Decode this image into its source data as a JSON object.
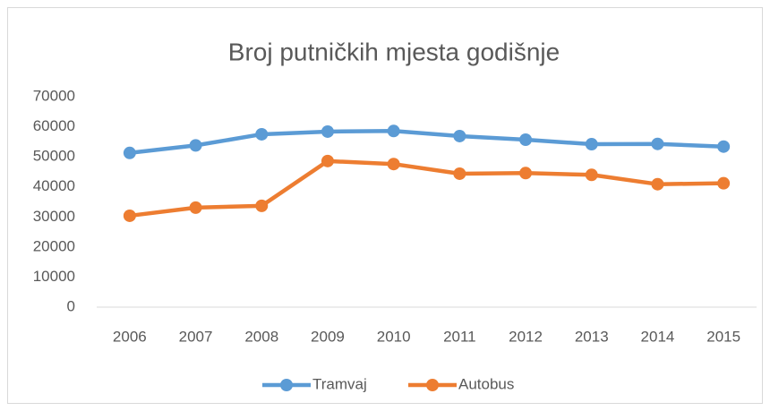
{
  "chart_data": {
    "type": "line",
    "title": "Broj putničkih mjesta godišnje",
    "categories": [
      "2006",
      "2007",
      "2008",
      "2009",
      "2010",
      "2011",
      "2012",
      "2013",
      "2014",
      "2015"
    ],
    "series": [
      {
        "name": "Tramvaj",
        "color": "#5b9bd5",
        "values": [
          51300,
          53800,
          57500,
          58400,
          58600,
          56900,
          55700,
          54200,
          54300,
          53400
        ]
      },
      {
        "name": "Autobus",
        "color": "#ed7d31",
        "values": [
          30400,
          33100,
          33700,
          48600,
          47600,
          44400,
          44600,
          44000,
          40900,
          41200
        ]
      }
    ],
    "ylim": [
      0,
      70000
    ],
    "yticks": [
      0,
      10000,
      20000,
      30000,
      40000,
      50000,
      60000,
      70000
    ],
    "grid": false,
    "legend": "bottom"
  }
}
